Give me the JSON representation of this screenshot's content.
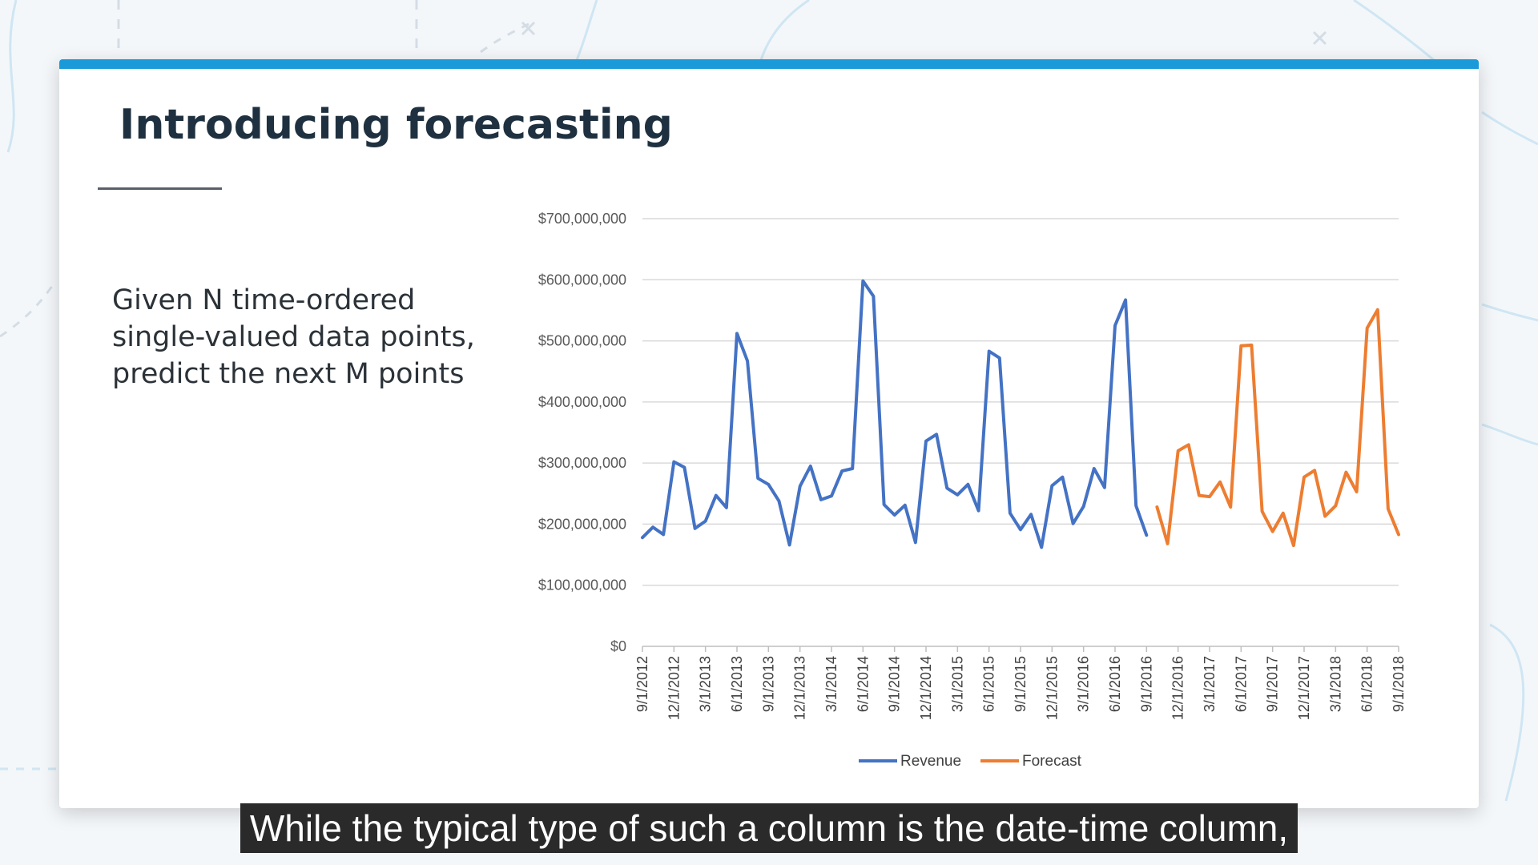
{
  "slide": {
    "title": "Introducing forecasting",
    "description_lines": [
      "Given N time-ordered",
      "single-valued data points,",
      "predict the next M points"
    ]
  },
  "caption": "While the typical type of such a column is the date-time column,",
  "colors": {
    "accent_bar": "#1a9ad8",
    "revenue": "#4472c4",
    "forecast": "#ed7d31",
    "grid": "#d9d9d9"
  },
  "chart_data": {
    "type": "line",
    "title": "",
    "xlabel": "",
    "ylabel": "",
    "ylim": [
      0,
      700000000
    ],
    "yticks": [
      "$700,000,000",
      "$600,000,000",
      "$500,000,000",
      "$400,000,000",
      "$300,000,000",
      "$200,000,000",
      "$100,000,000",
      "$0"
    ],
    "ytick_values": [
      700000000,
      600000000,
      500000000,
      400000000,
      300000000,
      200000000,
      100000000,
      0
    ],
    "x_range": [
      "9/1/2012",
      "9/1/2018"
    ],
    "xticks": [
      "9/1/2012",
      "12/1/2012",
      "3/1/2013",
      "6/1/2013",
      "9/1/2013",
      "12/1/2013",
      "3/1/2014",
      "6/1/2014",
      "9/1/2014",
      "12/1/2014",
      "3/1/2015",
      "6/1/2015",
      "9/1/2015",
      "12/1/2015",
      "3/1/2016",
      "6/1/2016",
      "9/1/2016",
      "12/1/2016",
      "3/1/2017",
      "6/1/2017",
      "9/1/2017",
      "12/1/2017",
      "3/1/2018",
      "6/1/2018",
      "9/1/2018"
    ],
    "grid": true,
    "legend": "bottom",
    "series": [
      {
        "name": "Revenue",
        "color": "#4472c4",
        "points": [
          [
            "9/1/2012",
            178000000
          ],
          [
            "10/1/2012",
            195000000
          ],
          [
            "11/1/2012",
            183000000
          ],
          [
            "12/1/2012",
            302000000
          ],
          [
            "1/1/2013",
            293000000
          ],
          [
            "2/1/2013",
            193000000
          ],
          [
            "3/1/2013",
            205000000
          ],
          [
            "4/1/2013",
            247000000
          ],
          [
            "5/1/2013",
            227000000
          ],
          [
            "6/1/2013",
            512000000
          ],
          [
            "7/1/2013",
            467000000
          ],
          [
            "8/1/2013",
            275000000
          ],
          [
            "9/1/2013",
            265000000
          ],
          [
            "10/1/2013",
            238000000
          ],
          [
            "11/1/2013",
            166000000
          ],
          [
            "12/1/2013",
            262000000
          ],
          [
            "1/1/2014",
            295000000
          ],
          [
            "2/1/2014",
            240000000
          ],
          [
            "3/1/2014",
            246000000
          ],
          [
            "4/1/2014",
            287000000
          ],
          [
            "5/1/2014",
            291000000
          ],
          [
            "6/1/2014",
            598000000
          ],
          [
            "7/1/2014",
            573000000
          ],
          [
            "8/1/2014",
            232000000
          ],
          [
            "9/1/2014",
            215000000
          ],
          [
            "10/1/2014",
            231000000
          ],
          [
            "11/1/2014",
            170000000
          ],
          [
            "12/1/2014",
            336000000
          ],
          [
            "1/1/2015",
            347000000
          ],
          [
            "2/1/2015",
            259000000
          ],
          [
            "3/1/2015",
            248000000
          ],
          [
            "4/1/2015",
            265000000
          ],
          [
            "5/1/2015",
            222000000
          ],
          [
            "6/1/2015",
            483000000
          ],
          [
            "7/1/2015",
            472000000
          ],
          [
            "8/1/2015",
            218000000
          ],
          [
            "9/1/2015",
            191000000
          ],
          [
            "10/1/2015",
            216000000
          ],
          [
            "11/1/2015",
            162000000
          ],
          [
            "12/1/2015",
            263000000
          ],
          [
            "1/1/2016",
            277000000
          ],
          [
            "2/1/2016",
            201000000
          ],
          [
            "3/1/2016",
            229000000
          ],
          [
            "4/1/2016",
            291000000
          ],
          [
            "5/1/2016",
            260000000
          ],
          [
            "6/1/2016",
            525000000
          ],
          [
            "7/1/2016",
            567000000
          ],
          [
            "8/1/2016",
            230000000
          ],
          [
            "9/1/2016",
            182000000
          ]
        ]
      },
      {
        "name": "Forecast",
        "color": "#ed7d31",
        "points": [
          [
            "10/1/2016",
            228000000
          ],
          [
            "11/1/2016",
            168000000
          ],
          [
            "12/1/2016",
            320000000
          ],
          [
            "1/1/2017",
            330000000
          ],
          [
            "2/1/2017",
            247000000
          ],
          [
            "3/1/2017",
            245000000
          ],
          [
            "4/1/2017",
            269000000
          ],
          [
            "5/1/2017",
            228000000
          ],
          [
            "6/1/2017",
            492000000
          ],
          [
            "7/1/2017",
            493000000
          ],
          [
            "8/1/2017",
            221000000
          ],
          [
            "9/1/2017",
            188000000
          ],
          [
            "10/1/2017",
            218000000
          ],
          [
            "11/1/2017",
            165000000
          ],
          [
            "12/1/2017",
            277000000
          ],
          [
            "1/1/2018",
            288000000
          ],
          [
            "2/1/2018",
            213000000
          ],
          [
            "3/1/2018",
            230000000
          ],
          [
            "4/1/2018",
            285000000
          ],
          [
            "5/1/2018",
            253000000
          ],
          [
            "6/1/2018",
            521000000
          ],
          [
            "7/1/2018",
            551000000
          ],
          [
            "8/1/2018",
            225000000
          ],
          [
            "9/1/2018",
            183000000
          ]
        ]
      }
    ]
  }
}
